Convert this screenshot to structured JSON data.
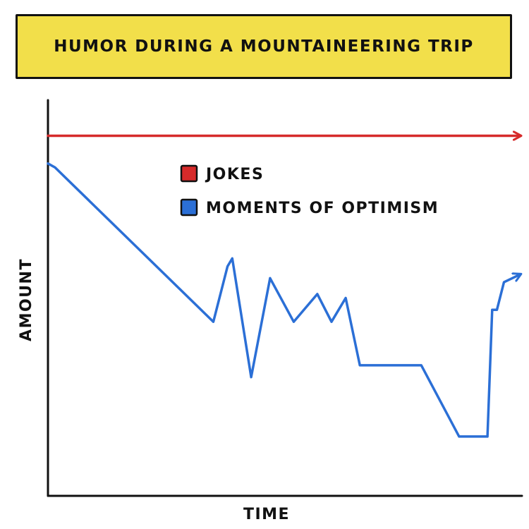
{
  "colors": {
    "banner": "#f2df4a",
    "jokes": "#d62a2a",
    "optimism": "#2b6fd6",
    "ink": "#111111"
  },
  "chart_data": {
    "type": "line",
    "title": "HUMOR DURING A MOUNTAINEERING TRIP",
    "xlabel": "TIME",
    "ylabel": "AMOUNT",
    "xlim": [
      0,
      100
    ],
    "ylim": [
      0,
      100
    ],
    "grid": false,
    "legend_position": "top-center",
    "series": [
      {
        "name": "JOKES",
        "color": "#d62a2a",
        "arrow_end": true,
        "x": [
          0,
          100
        ],
        "y": [
          91,
          91
        ]
      },
      {
        "name": "MOMENTS OF OPTIMISM",
        "color": "#2b6fd6",
        "arrow_end": true,
        "x": [
          0,
          1.5,
          35,
          38,
          39,
          43,
          47,
          52,
          57,
          60,
          63,
          66,
          70,
          79,
          87,
          89,
          90,
          93,
          94,
          95,
          96.5,
          100
        ],
        "y": [
          84,
          83,
          44,
          58,
          60,
          30,
          55,
          44,
          51,
          44,
          50,
          33,
          33,
          33,
          15,
          15,
          15,
          15,
          47,
          47,
          54,
          56
        ]
      }
    ]
  }
}
